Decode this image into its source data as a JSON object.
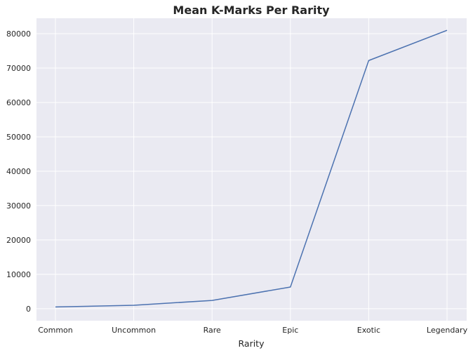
{
  "chart_data": {
    "type": "line",
    "title": "Mean K-Marks Per Rarity",
    "xlabel": "Rarity",
    "ylabel": "",
    "categories": [
      "Common",
      "Uncommon",
      "Rare",
      "Epic",
      "Exotic",
      "Legendary"
    ],
    "series": [
      {
        "values": [
          500,
          1000,
          2400,
          6300,
          72200,
          81000
        ]
      }
    ],
    "ylim": [
      -3500,
      84500
    ],
    "yticks": [
      0,
      10000,
      20000,
      30000,
      40000,
      50000,
      60000,
      70000,
      80000
    ],
    "grid": true,
    "colors": {
      "plot_background": "#eaeaf2",
      "grid": "#ffffff",
      "line": "#4c72b0",
      "text": "#262626"
    }
  }
}
